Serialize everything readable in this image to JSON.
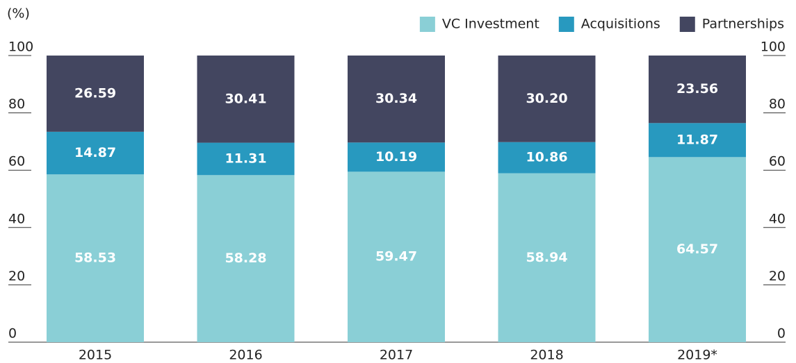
{
  "chart_data": {
    "type": "stacked_bar",
    "ylabel": "(%)",
    "categories": [
      "2015",
      "2016",
      "2017",
      "2018",
      "2019*"
    ],
    "series": [
      {
        "name": "VC Investment",
        "color": "#8acfd6",
        "values": [
          58.53,
          58.28,
          59.47,
          58.94,
          64.57
        ]
      },
      {
        "name": "Acquisitions",
        "color": "#2899bf",
        "values": [
          14.87,
          11.31,
          10.19,
          10.86,
          11.87
        ]
      },
      {
        "name": "Partnerships",
        "color": "#434660",
        "values": [
          26.59,
          30.41,
          30.34,
          30.2,
          23.56
        ],
        "value_labels": [
          "26.59",
          "30.41",
          "30.34",
          "30.20",
          "23.56"
        ]
      }
    ],
    "ylim": [
      0,
      100
    ],
    "yticks": [
      0,
      20,
      40,
      60,
      80,
      100
    ],
    "legend": "top-right"
  }
}
